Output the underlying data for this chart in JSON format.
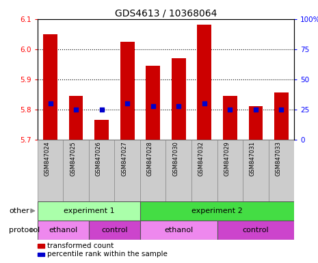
{
  "title": "GDS4613 / 10368064",
  "samples": [
    "GSM847024",
    "GSM847025",
    "GSM847026",
    "GSM847027",
    "GSM847028",
    "GSM847030",
    "GSM847032",
    "GSM847029",
    "GSM847031",
    "GSM847033"
  ],
  "transformed_counts": [
    6.05,
    5.845,
    5.765,
    6.025,
    5.945,
    5.97,
    6.08,
    5.845,
    5.81,
    5.855
  ],
  "ylim": [
    5.7,
    6.1
  ],
  "yticks_left": [
    5.7,
    5.8,
    5.9,
    6.0,
    6.1
  ],
  "yticks_right": [
    0,
    25,
    50,
    75,
    100
  ],
  "bar_color": "#cc0000",
  "dot_color": "#0000cc",
  "bar_bottom": 5.7,
  "dot_y_values": [
    5.82,
    5.8,
    5.8,
    5.82,
    5.81,
    5.81,
    5.82,
    5.8,
    5.8,
    5.8
  ],
  "experiment_groups": [
    {
      "label": "experiment 1",
      "start": 0,
      "end": 4,
      "color": "#aaffaa"
    },
    {
      "label": "experiment 2",
      "start": 4,
      "end": 10,
      "color": "#44dd44"
    }
  ],
  "protocol_groups": [
    {
      "label": "ethanol",
      "start": 0,
      "end": 2,
      "color": "#ee88ee"
    },
    {
      "label": "control",
      "start": 2,
      "end": 4,
      "color": "#cc44cc"
    },
    {
      "label": "ethanol",
      "start": 4,
      "end": 7,
      "color": "#ee88ee"
    },
    {
      "label": "control",
      "start": 7,
      "end": 10,
      "color": "#cc44cc"
    }
  ],
  "legend_items": [
    {
      "label": "transformed count",
      "color": "#cc0000"
    },
    {
      "label": "percentile rank within the sample",
      "color": "#0000cc"
    }
  ],
  "other_label": "other",
  "protocol_label": "protocol",
  "tick_bg_color": "#cccccc",
  "grid_color": "#000000",
  "spine_color": "#000000"
}
